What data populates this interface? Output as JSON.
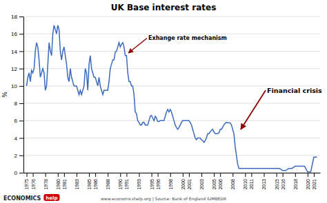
{
  "chart_data": {
    "type": "line",
    "title": "UK Base interest rates",
    "ylabel": "%",
    "color": "#3a6abf",
    "grid": "y",
    "xlim": [
      1974.5,
      2022.0
    ],
    "xticks": [
      1975,
      1976,
      1978,
      1980,
      1981,
      1983,
      1985,
      1986,
      1988,
      1990,
      1991,
      1993,
      1995,
      1996,
      1998,
      2000,
      2001,
      2003,
      2005,
      2006,
      2008,
      2010,
      2011,
      2013,
      2015,
      2016,
      2018,
      2020,
      2021
    ],
    "ylim": [
      0,
      18
    ],
    "yticks": [
      0,
      2,
      4,
      6,
      8,
      10,
      12,
      14,
      16,
      18
    ],
    "annotations": [
      {
        "text": "Exhange rate mechanism",
        "xy": [
          1991.3,
          13.8
        ],
        "xytext": [
          1994.5,
          15.5
        ]
      },
      {
        "text": "Financial crisis",
        "xy": [
          2009.3,
          5.0
        ],
        "xytext": [
          2013.5,
          9.5
        ]
      }
    ],
    "footer": "www.economicshelp.org | Source: Bank of England IUMBEDR",
    "logo": [
      "ECONOMICS",
      "help"
    ],
    "x": [
      1975.0,
      1975.2,
      1975.4,
      1975.6,
      1975.8,
      1976.0,
      1976.2,
      1976.4,
      1976.6,
      1976.8,
      1977.0,
      1977.2,
      1977.4,
      1977.6,
      1977.8,
      1978.0,
      1978.2,
      1978.4,
      1978.6,
      1978.8,
      1979.0,
      1979.2,
      1979.4,
      1979.6,
      1979.8,
      1980.0,
      1980.2,
      1980.4,
      1980.6,
      1980.8,
      1981.0,
      1981.2,
      1981.4,
      1981.6,
      1981.8,
      1982.0,
      1982.2,
      1982.4,
      1982.6,
      1982.8,
      1983.0,
      1983.2,
      1983.4,
      1983.6,
      1983.8,
      1984.0,
      1984.2,
      1984.4,
      1984.6,
      1984.8,
      1985.0,
      1985.2,
      1985.4,
      1985.6,
      1985.8,
      1986.0,
      1986.2,
      1986.4,
      1986.6,
      1986.8,
      1987.0,
      1987.2,
      1987.4,
      1987.6,
      1987.8,
      1988.0,
      1988.2,
      1988.4,
      1988.6,
      1988.8,
      1989.0,
      1989.2,
      1989.4,
      1989.6,
      1989.8,
      1990.0,
      1990.2,
      1990.4,
      1990.6,
      1990.8,
      1991.0,
      1991.2,
      1991.4,
      1991.6,
      1991.8,
      1992.0,
      1992.2,
      1992.4,
      1992.6,
      1992.8,
      1993.0,
      1993.2,
      1993.4,
      1993.6,
      1993.8,
      1994.0,
      1994.2,
      1994.4,
      1994.6,
      1994.8,
      1995.0,
      1995.2,
      1995.4,
      1995.6,
      1995.8,
      1996.0,
      1996.2,
      1996.4,
      1996.6,
      1996.8,
      1997.0,
      1997.2,
      1997.4,
      1997.6,
      1997.8,
      1998.0,
      1998.2,
      1998.4,
      1998.6,
      1998.8,
      1999.0,
      1999.2,
      1999.4,
      1999.6,
      1999.8,
      2000.0,
      2000.2,
      2000.4,
      2000.6,
      2000.8,
      2001.0,
      2001.2,
      2001.4,
      2001.6,
      2001.8,
      2002.0,
      2002.2,
      2002.4,
      2002.6,
      2002.8,
      2003.0,
      2003.2,
      2003.4,
      2003.6,
      2003.8,
      2004.0,
      2004.2,
      2004.4,
      2004.6,
      2004.8,
      2005.0,
      2005.2,
      2005.4,
      2005.6,
      2005.8,
      2006.0,
      2006.2,
      2006.4,
      2006.6,
      2006.8,
      2007.0,
      2007.2,
      2007.4,
      2007.6,
      2007.8,
      2008.0,
      2008.2,
      2008.4,
      2008.6,
      2008.8,
      2009.0,
      2009.5,
      2010.0,
      2010.5,
      2011.0,
      2011.5,
      2012.0,
      2012.5,
      2013.0,
      2013.5,
      2014.0,
      2014.5,
      2015.0,
      2015.5,
      2016.0,
      2016.5,
      2017.0,
      2017.5,
      2018.0,
      2018.5,
      2019.0,
      2019.5,
      2020.0,
      2020.5,
      2021.0,
      2021.5
    ],
    "values": [
      10.0,
      11.0,
      11.5,
      10.5,
      11.8,
      11.5,
      12.0,
      14.0,
      15.0,
      14.5,
      13.0,
      11.0,
      11.5,
      12.0,
      11.5,
      9.5,
      10.0,
      12.5,
      15.0,
      14.0,
      13.5,
      16.0,
      17.0,
      16.5,
      16.0,
      17.0,
      16.5,
      14.0,
      13.0,
      14.0,
      14.5,
      13.5,
      12.5,
      11.0,
      10.5,
      12.0,
      11.0,
      10.5,
      10.0,
      10.0,
      10.0,
      9.5,
      9.0,
      9.5,
      9.0,
      9.5,
      10.0,
      12.0,
      11.5,
      9.5,
      12.5,
      13.5,
      12.0,
      11.5,
      11.0,
      11.0,
      10.5,
      10.0,
      11.0,
      10.0,
      9.5,
      9.0,
      9.5,
      9.5,
      9.5,
      9.5,
      10.5,
      12.0,
      12.5,
      13.0,
      13.0,
      13.9,
      14.0,
      14.5,
      15.0,
      14.5,
      14.8,
      15.0,
      14.5,
      13.5,
      13.5,
      11.5,
      10.5,
      10.5,
      10.0,
      10.0,
      9.0,
      7.0,
      6.8,
      6.0,
      5.8,
      5.5,
      5.5,
      5.8,
      5.8,
      5.5,
      5.5,
      5.5,
      6.0,
      6.5,
      6.6,
      6.3,
      6.0,
      6.5,
      6.3,
      5.9,
      5.9,
      6.0,
      6.0,
      6.0,
      6.0,
      6.5,
      7.0,
      7.3,
      7.0,
      7.3,
      7.0,
      6.5,
      6.0,
      5.5,
      5.2,
      5.0,
      5.2,
      5.5,
      5.8,
      6.0,
      6.0,
      6.0,
      6.0,
      6.0,
      6.0,
      5.8,
      5.5,
      5.0,
      4.5,
      4.0,
      3.8,
      4.0,
      4.0,
      4.0,
      3.8,
      3.7,
      3.5,
      3.7,
      4.0,
      4.5,
      4.5,
      4.7,
      4.9,
      5.0,
      4.7,
      4.5,
      4.5,
      4.5,
      4.6,
      5.0,
      5.0,
      5.25,
      5.5,
      5.7,
      5.8,
      5.75,
      5.75,
      5.75,
      5.5,
      5.0,
      4.5,
      3.0,
      2.0,
      1.0,
      0.5,
      0.5,
      0.5,
      0.5,
      0.5,
      0.5,
      0.5,
      0.5,
      0.5,
      0.5,
      0.5,
      0.5,
      0.5,
      0.5,
      0.25,
      0.25,
      0.5,
      0.5,
      0.75,
      0.75,
      0.75,
      0.75,
      0.1,
      0.1,
      1.8,
      1.8
    ]
  }
}
